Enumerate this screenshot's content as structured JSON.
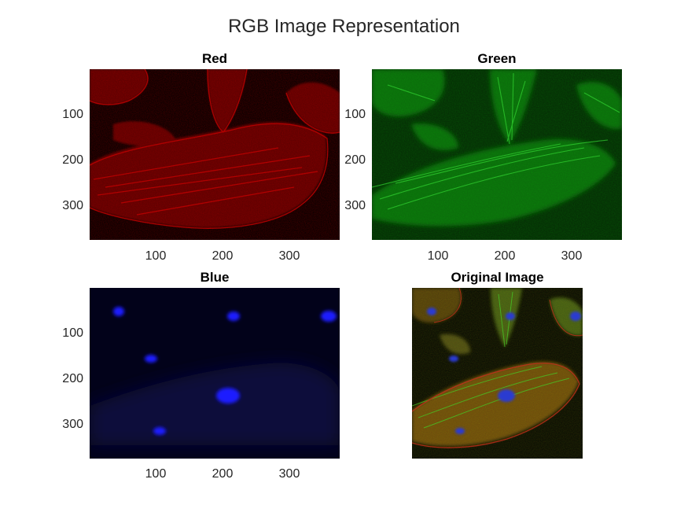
{
  "figure": {
    "suptitle": "RGB Image Representation",
    "panels": [
      {
        "title": "Red",
        "y_ticks": [
          "100",
          "200",
          "300"
        ],
        "x_ticks": [
          "100",
          "200",
          "300"
        ],
        "channel_color": "#ff0000"
      },
      {
        "title": "Green",
        "y_ticks": [
          "100",
          "200",
          "300"
        ],
        "x_ticks": [
          "100",
          "200",
          "300"
        ],
        "channel_color": "#00ff00"
      },
      {
        "title": "Blue",
        "y_ticks": [
          "100",
          "200",
          "300"
        ],
        "x_ticks": [
          "100",
          "200",
          "300"
        ],
        "channel_color": "#0000ff"
      },
      {
        "title": "Original Image"
      }
    ]
  }
}
